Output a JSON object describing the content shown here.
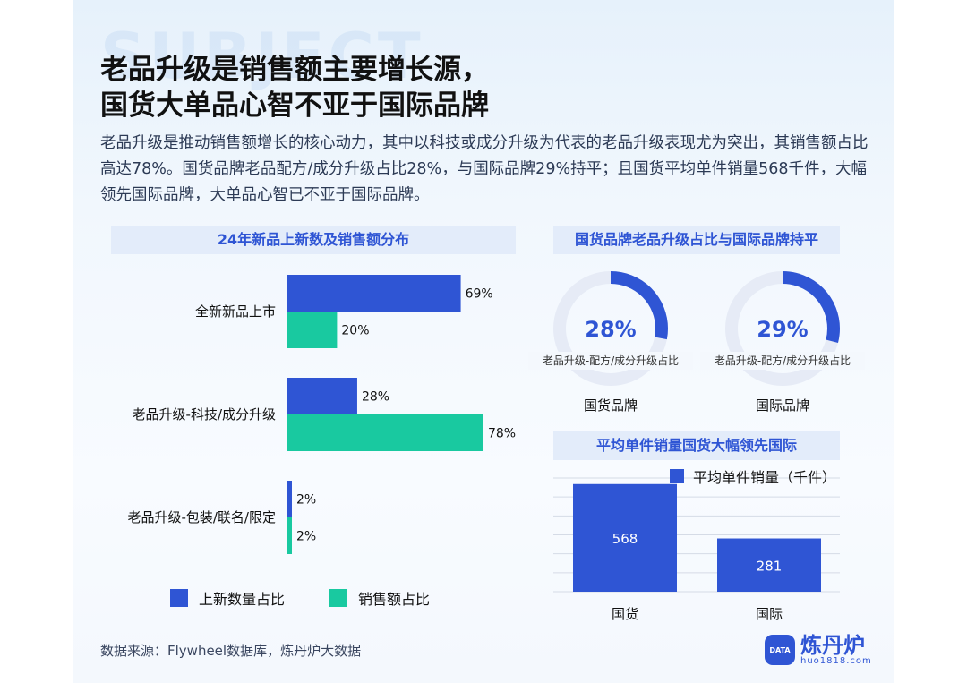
{
  "title_line1": "老品升级是销售额主要增长源，",
  "title_line2": "国货大单品心智不亚于国际品牌",
  "description": "老品升级是推动销售额增长的核心动力，其中以科技或成分升级为代表的老品升级表现尤为突出，其销售额占比高达78%。国货品牌老品配方/成分升级占比28%，与国际品牌29%持平；且国货平均单件销量568千件，大幅领先国际品牌，大单品心智已不亚于国际品牌。",
  "background_word": "SUBJECT",
  "source": "数据来源：Flywheel数据库，炼丹炉大数据",
  "logo": {
    "name": "炼丹炉",
    "url": "huo1818.com",
    "badge": "DATA"
  },
  "colors": {
    "blue": "#2f55d4",
    "green": "#19c9a0",
    "track": "#e6ebf6",
    "gridline": "#d5dbe6"
  },
  "chart_data": [
    {
      "type": "bar",
      "orientation": "horizontal",
      "title": "24年新品上新数及销售额分布",
      "categories": [
        "全新新品上市",
        "老品升级-科技/成分升级",
        "老品升级-包装/联名/限定"
      ],
      "series": [
        {
          "name": "上新数量占比",
          "values": [
            69,
            28,
            2
          ],
          "labels": [
            "69%",
            "28%",
            "2%"
          ],
          "color": "#2f55d4"
        },
        {
          "name": "销售额占比",
          "values": [
            20,
            78,
            2
          ],
          "labels": [
            "20%",
            "78%",
            "2%"
          ],
          "color": "#19c9a0"
        }
      ],
      "xlim": [
        0,
        100
      ],
      "legend": "bottom"
    },
    {
      "type": "pie",
      "variant": "donut",
      "title": "国货品牌老品升级占比与国际品牌持平",
      "items": [
        {
          "name": "国货品牌",
          "value": 28,
          "label": "28%",
          "caption": "老品升级-配方/成分升级占比"
        },
        {
          "name": "国际品牌",
          "value": 29,
          "label": "29%",
          "caption": "老品升级-配方/成分升级占比"
        }
      ]
    },
    {
      "type": "bar",
      "orientation": "vertical",
      "title": "平均单件销量国货大幅领先国际",
      "categories": [
        "国货",
        "国际"
      ],
      "series": [
        {
          "name": "平均单件销量（千件）",
          "values": [
            568,
            281
          ],
          "color": "#2f55d4"
        }
      ],
      "ylim": [
        0,
        600
      ],
      "grid": true,
      "legend": "top"
    }
  ]
}
